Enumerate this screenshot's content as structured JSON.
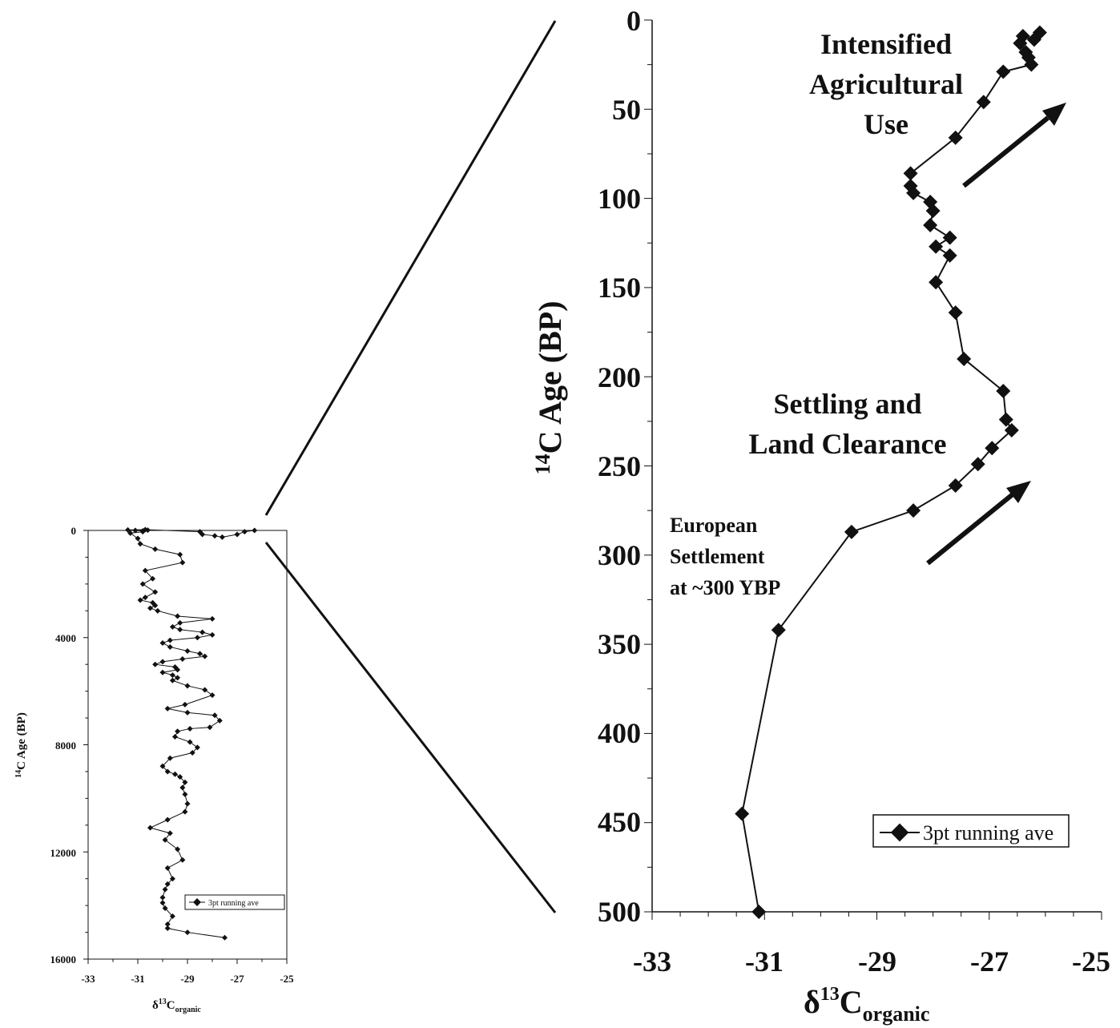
{
  "chart_data": [
    {
      "type": "line",
      "panel": "overview",
      "series": [
        {
          "name": "3pt running ave",
          "x": [
            -27.5,
            -29.0,
            -29.8,
            -29.8,
            -29.6,
            -29.9,
            -30.0,
            -30.0,
            -29.9,
            -29.8,
            -29.6,
            -29.8,
            -29.2,
            -29.4,
            -29.9,
            -29.7,
            -30.5,
            -29.8,
            -29.1,
            -29.0,
            -29.1,
            -29.2,
            -29.1,
            -29.3,
            -29.5,
            -29.8,
            -30.0,
            -29.7,
            -28.8,
            -28.6,
            -28.9,
            -29.5,
            -29.4,
            -28.9,
            -28.1,
            -27.7,
            -27.9,
            -29.0,
            -29.8,
            -29.1,
            -28.0,
            -28.3,
            -29.0,
            -29.6,
            -29.4,
            -29.6,
            -30.0,
            -29.4,
            -29.5,
            -30.3,
            -30.0,
            -29.2,
            -28.3,
            -28.5,
            -29.0,
            -29.7,
            -30.0,
            -29.7,
            -28.6,
            -28.0,
            -28.4,
            -29.3,
            -29.6,
            -29.3,
            -28.0,
            -29.4,
            -30.2,
            -30.5,
            -30.3,
            -30.4,
            -30.9,
            -30.7,
            -30.3,
            -30.8,
            -30.4,
            -30.7,
            -29.2,
            -29.3,
            -30.3,
            -30.9,
            -31.0,
            -31.3,
            -30.8,
            -30.8,
            -31.1,
            -30.6,
            -31.4,
            -30.7,
            -28.5,
            -28.4,
            -27.9,
            -27.6,
            -27.0,
            -26.7,
            -26.3
          ],
          "y": [
            15200,
            15000,
            14850,
            14700,
            14400,
            14100,
            13900,
            13700,
            13400,
            13200,
            13000,
            12600,
            12300,
            11900,
            11550,
            11300,
            11100,
            10800,
            10500,
            10200,
            9850,
            9600,
            9400,
            9200,
            9100,
            9000,
            8800,
            8500,
            8300,
            8100,
            7900,
            7700,
            7500,
            7400,
            7350,
            7100,
            6900,
            6800,
            6650,
            6500,
            6150,
            5950,
            5800,
            5600,
            5500,
            5400,
            5300,
            5200,
            5100,
            5000,
            4900,
            4800,
            4700,
            4600,
            4500,
            4350,
            4200,
            4100,
            4000,
            3900,
            3800,
            3700,
            3600,
            3450,
            3300,
            3200,
            3000,
            2900,
            2800,
            2700,
            2600,
            2500,
            2300,
            2000,
            1800,
            1500,
            1200,
            900,
            700,
            500,
            300,
            100,
            50,
            20,
            0,
            -10,
            -20,
            -30,
            50,
            150,
            200,
            250,
            150,
            50,
            0
          ]
        }
      ],
      "xlim": [
        -33,
        -25
      ],
      "ylim": [
        16000,
        0
      ],
      "x_ticks": [
        "-33",
        "-31",
        "-29",
        "-27",
        "-25"
      ],
      "y_ticks": [
        "0",
        "4000",
        "8000",
        "12000",
        "16000"
      ],
      "xlabel_main": "δ",
      "xlabel_sup": "13",
      "xlabel_sub_main": "C",
      "xlabel_sub": "organic",
      "ylabel_sup": "14",
      "ylabel_main": "C Age (BP)",
      "legend": "3pt running ave",
      "legend_placement": "lower-right"
    },
    {
      "type": "line",
      "panel": "detail",
      "series": [
        {
          "name": "3pt running ave",
          "x": [
            -26.1,
            -26.2,
            -26.4,
            -26.45,
            -26.35,
            -26.3,
            -26.25,
            -26.75,
            -27.1,
            -27.6,
            -28.4,
            -28.4,
            -28.35,
            -28.05,
            -28.0,
            -28.05,
            -27.7,
            -27.95,
            -27.7,
            -27.95,
            -27.6,
            -27.45,
            -26.75,
            -26.7,
            -26.6,
            -26.95,
            -27.2,
            -27.6,
            -28.35,
            -29.45,
            -30.75,
            -31.4,
            -31.1
          ],
          "y": [
            7,
            11,
            9,
            13,
            18,
            21,
            25,
            29,
            46,
            66,
            86,
            93,
            97,
            102,
            107,
            115,
            122,
            127,
            132,
            147,
            164,
            190,
            208,
            224,
            230,
            240,
            249,
            261,
            275,
            287,
            342,
            445,
            500
          ]
        }
      ],
      "xlim": [
        -33,
        -25
      ],
      "ylim": [
        500,
        0
      ],
      "x_ticks": [
        "-33",
        "-31",
        "-29",
        "-27",
        "-25"
      ],
      "y_ticks": [
        "0",
        "50",
        "100",
        "150",
        "200",
        "250",
        "300",
        "350",
        "400",
        "450",
        "500"
      ],
      "xlabel_main": "δ",
      "xlabel_sup": "13",
      "xlabel_sub_main": "C",
      "xlabel_sub": "organic",
      "ylabel_sup": "14",
      "ylabel_main": "C Age (BP)",
      "legend": "3pt running ave",
      "legend_placement": "lower-right",
      "annotations": {
        "intensified": [
          "Intensified",
          "Agricultural",
          "Use"
        ],
        "settling": [
          "Settling and",
          "Land Clearance"
        ],
        "european": [
          "European",
          "Settlement",
          "at ~300 YBP"
        ]
      }
    }
  ]
}
